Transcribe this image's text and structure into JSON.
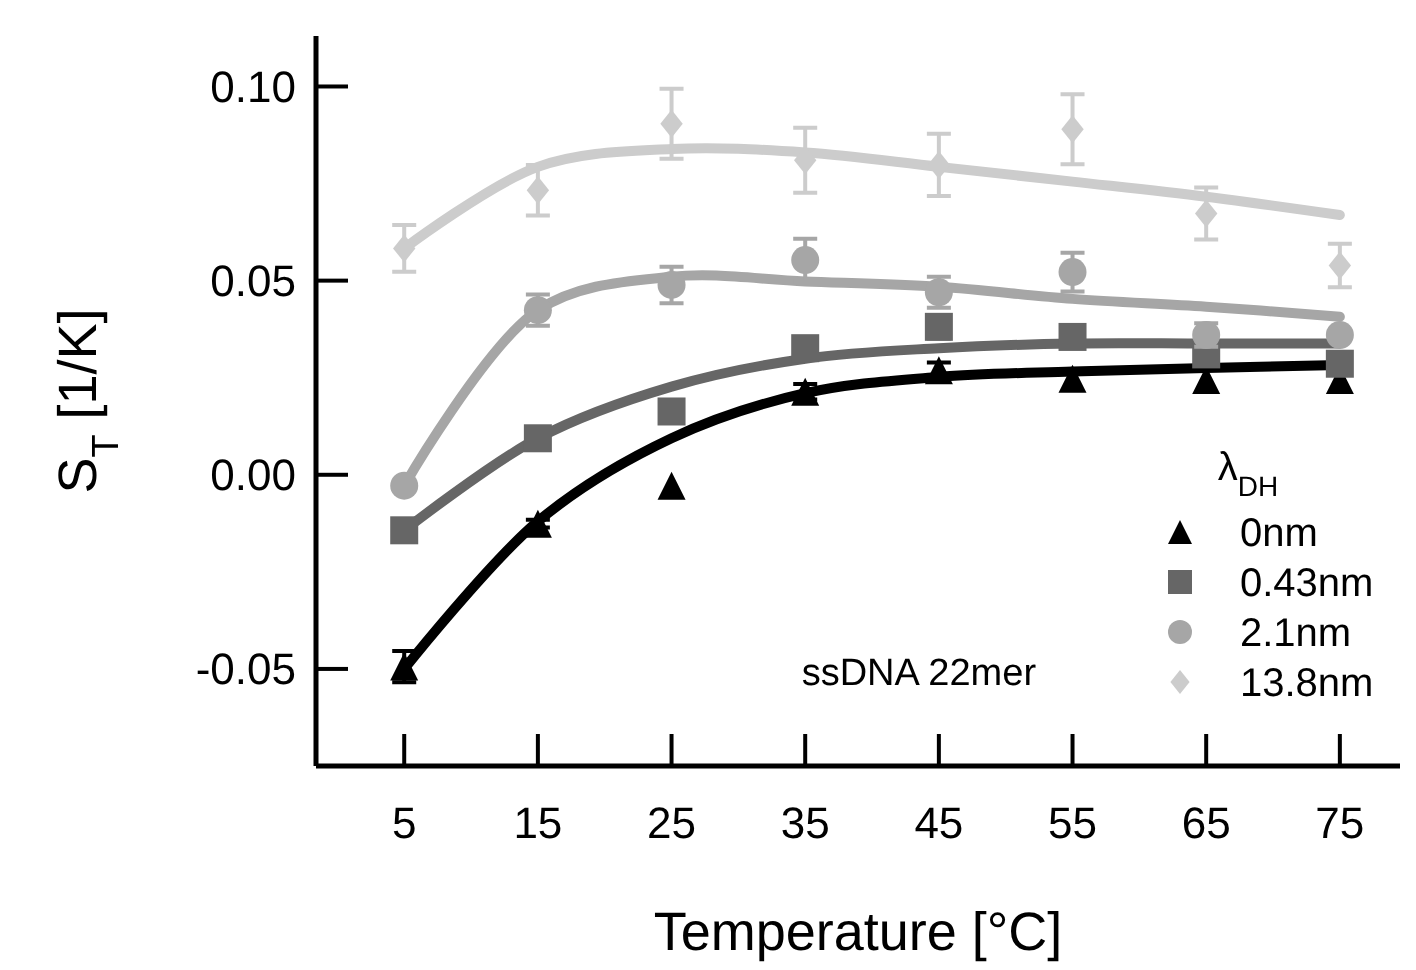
{
  "chart_data": {
    "type": "scatter",
    "xlabel": "Temperature [°C]",
    "ylabel": "S$_{T}$ [1/K]",
    "legend_title": "λ$_{DH}$",
    "annotations": [
      "ssDNA 22mer"
    ],
    "x": [
      5,
      15,
      25,
      35,
      45,
      55,
      65,
      75
    ],
    "xlim": [
      -1.6,
      79.5
    ],
    "xticks": [
      5,
      15,
      25,
      35,
      45,
      55,
      65,
      75
    ],
    "ylim": [
      -0.075,
      0.113
    ],
    "yticks": [
      {
        "value": 0.1,
        "label": "0.10"
      },
      {
        "value": 0.05,
        "label": "0.05"
      },
      {
        "value": 0,
        "label": "0.00"
      },
      {
        "value": -0.05,
        "label": "-0.05"
      }
    ],
    "grid": false,
    "legend": "bottom right",
    "series": [
      {
        "type": "line",
        "color": "#000000",
        "marker": "none",
        "values": [
          -0.05,
          -0.012,
          0.0094,
          0.021,
          0.0252,
          0.0266,
          0.0275,
          0.0283
        ]
      },
      {
        "type": "line",
        "color": "#666666",
        "marker": "none",
        "values": [
          -0.0143,
          0.0094,
          0.0227,
          0.0299,
          0.0326,
          0.0338,
          0.0338,
          0.0338
        ]
      },
      {
        "type": "line",
        "color": "#a6a6a6",
        "marker": "none",
        "values": [
          -0.0028,
          0.0424,
          0.051,
          0.0498,
          0.0484,
          0.0453,
          0.0433,
          0.0407
        ]
      },
      {
        "type": "line",
        "color": "#cccccc",
        "marker": "none",
        "values": [
          0.0583,
          0.0793,
          0.0839,
          0.083,
          0.0793,
          0.0755,
          0.0716,
          0.0669
        ]
      },
      {
        "name": "0nm",
        "color": "#000000",
        "marker": "triangle",
        "values": [
          -0.0494,
          -0.0126,
          -0.0028,
          0.0214,
          0.0269,
          0.0247,
          0.0244,
          0.0244
        ],
        "errors": [
          0.004,
          0.001,
          null,
          0.002,
          0.002,
          null,
          null,
          null
        ]
      },
      {
        "name": "0.43nm",
        "color": "#666666",
        "marker": "square",
        "values": [
          -0.0143,
          0.0094,
          0.0163,
          0.0326,
          0.0381,
          0.0355,
          0.031,
          0.0286
        ],
        "errors": [
          null,
          null,
          null,
          null,
          0.003,
          null,
          null,
          null
        ]
      },
      {
        "name": "2.1nm",
        "color": "#a6a6a6",
        "marker": "circle",
        "values": [
          -0.0028,
          0.0424,
          0.0489,
          0.0553,
          0.047,
          0.0522,
          0.036,
          0.036
        ],
        "errors": [
          null,
          0.004,
          0.0047,
          0.0055,
          0.004,
          0.005,
          0.003,
          null
        ]
      },
      {
        "name": "13.8nm",
        "color": "#cccccc",
        "marker": "diamond",
        "values": [
          0.0583,
          0.0733,
          0.0904,
          0.081,
          0.0798,
          0.089,
          0.0673,
          0.0539
        ],
        "errors": [
          0.006,
          0.0065,
          0.009,
          0.0084,
          0.008,
          0.009,
          0.0067,
          0.0056
        ]
      }
    ]
  }
}
